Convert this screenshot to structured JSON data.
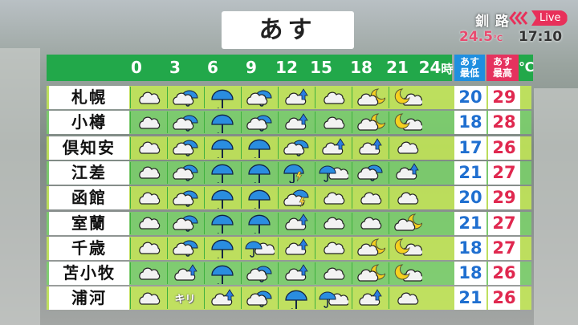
{
  "title": "あす",
  "station": "釧 路",
  "live_label": "Live",
  "current_temp": "24.5",
  "temp_unit": "℃",
  "clock": "17:10",
  "header": {
    "hours": [
      "0",
      "3",
      "6",
      "9",
      "12",
      "15",
      "18",
      "21",
      "24"
    ],
    "hour_suffix": "時",
    "low_label": "あす 最低",
    "high_label": "あす 最高",
    "unit": "℃"
  },
  "colors": {
    "header_green": "#22a84a",
    "low_blue": "#1f6fd0",
    "high_red": "#e0284f",
    "live_red": "#e8305a"
  },
  "rows": [
    {
      "city": "札幌",
      "low": "20",
      "high": "29",
      "icons": [
        "cloud",
        "cloud-rain",
        "rain",
        "cloud-rain",
        "cloud-shower",
        "cloud",
        "cloud-moon",
        "moon-cloud"
      ]
    },
    {
      "city": "小樽",
      "low": "18",
      "high": "28",
      "icons": [
        "cloud",
        "cloud-rain",
        "rain",
        "cloud-rain",
        "cloud-shower",
        "cloud",
        "cloud-moon",
        "moon-cloud"
      ]
    },
    {
      "city": "倶知安",
      "low": "17",
      "high": "26",
      "icons": [
        "cloud",
        "cloud-rain",
        "rain",
        "rain",
        "cloud-rain",
        "cloud-shower",
        "cloud-shower",
        "cloud"
      ]
    },
    {
      "city": "江差",
      "low": "21",
      "high": "27",
      "icons": [
        "cloud",
        "cloud-rain",
        "rain",
        "rain",
        "rain-thunder",
        "rain-cloud",
        "cloud-rain",
        "cloud-shower"
      ]
    },
    {
      "city": "函館",
      "low": "20",
      "high": "29",
      "icons": [
        "cloud",
        "cloud-rain",
        "rain",
        "rain",
        "cloud-thunder",
        "cloud",
        "cloud",
        "cloud"
      ]
    },
    {
      "city": "室蘭",
      "low": "21",
      "high": "27",
      "icons": [
        "cloud",
        "cloud-rain",
        "rain",
        "rain",
        "cloud-shower",
        "cloud",
        "cloud",
        "cloud-moon"
      ]
    },
    {
      "city": "千歳",
      "low": "18",
      "high": "27",
      "icons": [
        "cloud",
        "cloud-rain",
        "rain",
        "rain-cloud",
        "cloud-shower",
        "cloud",
        "cloud-moon",
        "moon-cloud"
      ]
    },
    {
      "city": "苫小牧",
      "low": "18",
      "high": "26",
      "icons": [
        "cloud",
        "cloud-shower",
        "rain",
        "cloud-rain",
        "cloud-shower",
        "cloud",
        "cloud-moon",
        "moon-cloud"
      ]
    },
    {
      "city": "浦河",
      "low": "21",
      "high": "26",
      "icons": [
        "cloud",
        "fog",
        "cloud-shower",
        "cloud-rain",
        "rain",
        "rain-cloud",
        "cloud-shower",
        "cloud"
      ]
    }
  ],
  "fog_label": "キリ"
}
